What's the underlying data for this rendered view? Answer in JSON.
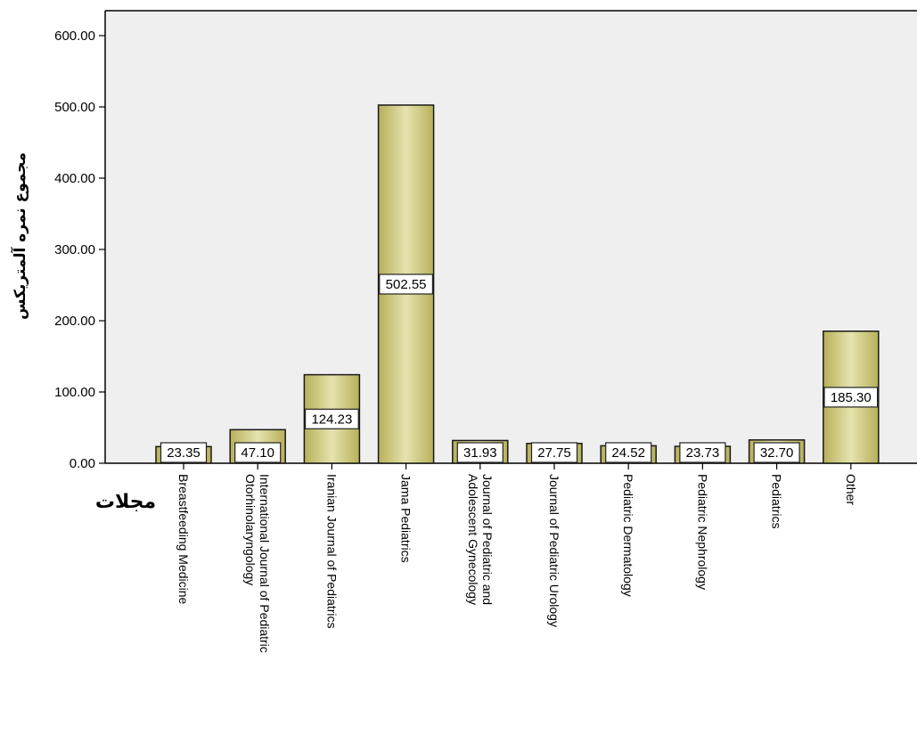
{
  "chart_data": {
    "type": "bar",
    "categories": [
      "Breastfeeding Medicine",
      "International Journal of Pediatric Otorhinolaryngology",
      "Iranian Journal of Pediatrics",
      "Jama Pediatrics",
      "Journal of Pediatric and Adolescent Gynecology",
      "Journal of Pediatric Urology",
      "Pediatric Dermatology",
      "Pediatric Nephrology",
      "Pediatrics",
      "Other"
    ],
    "values": [
      23.35,
      47.1,
      124.23,
      502.55,
      31.93,
      27.75,
      24.52,
      23.73,
      32.7,
      185.3
    ],
    "value_labels": [
      "23.35",
      "47.10",
      "124.23",
      "502.55",
      "31.93",
      "27.75",
      "24.52",
      "23.73",
      "32.70",
      "185.30"
    ],
    "ylabel": "مجموع نمره آلمتریکس",
    "xlabel": "مجلات",
    "ylim": [
      0,
      600
    ],
    "yticks": [
      0,
      100,
      200,
      300,
      400,
      500,
      600
    ],
    "ytick_labels": [
      "0.00",
      "100.00",
      "200.00",
      "300.00",
      "400.00",
      "500.00",
      "600.00"
    ],
    "grid": false,
    "colors": {
      "plot_background": "#efefef",
      "bar_fill_top": "#b7b05a",
      "bar_fill_mid": "#e6e3ae",
      "bar_stroke": "#1a1a1a"
    }
  }
}
